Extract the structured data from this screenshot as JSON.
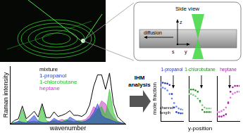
{
  "side_view": {
    "title": "Side view",
    "z_label": "z",
    "y_label": "y",
    "s_label": "s",
    "arrow_label": "diffusion"
  },
  "ihm_arrow": {
    "lines": [
      "IHM",
      "analysis"
    ]
  },
  "profile_axes": {
    "xlabel": "y-position",
    "ylabel": "mole fraction",
    "annotation": "channel length"
  },
  "chart_data": [
    {
      "type": "line",
      "xlabel": "wavenumber",
      "ylabel": "Raman intensity",
      "tick_labels": false,
      "grid": false,
      "x": [
        0,
        1,
        2,
        3,
        4,
        5,
        6,
        7,
        8,
        9,
        10,
        11,
        12,
        13,
        14,
        15,
        16,
        17,
        18,
        19,
        20,
        21,
        22,
        23,
        24,
        25,
        26,
        27,
        28,
        29
      ],
      "xlim": [
        0,
        29
      ],
      "ylim": [
        0,
        1
      ],
      "series": [
        {
          "name": "mixture",
          "color": "#000000",
          "type": "line",
          "values": [
            0,
            0.06,
            0.09,
            0.31,
            0.09,
            0.15,
            0.22,
            0.12,
            0.35,
            0.11,
            0.11,
            0.21,
            0.13,
            0.15,
            0.18,
            0.23,
            0.15,
            0.15,
            0.13,
            0.18,
            0.33,
            0.65,
            0.85,
            0.85,
            0.6,
            0.88,
            0.35,
            0.13,
            0.06,
            0
          ]
        },
        {
          "name": "1-propanol",
          "color": "#1f3fd0",
          "type": "area",
          "values": [
            0,
            0.02,
            0.05,
            0.03,
            0.02,
            0.08,
            0.15,
            0.05,
            0.03,
            0.02,
            0.04,
            0.1,
            0.06,
            0.03,
            0.05,
            0.12,
            0.08,
            0.04,
            0.03,
            0.05,
            0.1,
            0.2,
            0.35,
            0.15,
            0.1,
            0.08,
            0.05,
            0.03,
            0.02,
            0
          ]
        },
        {
          "name": "1-chlorobutane",
          "color": "#22c022",
          "type": "area",
          "values": [
            0,
            0.03,
            0.02,
            0.25,
            0.05,
            0.03,
            0.02,
            0.04,
            0.3,
            0.06,
            0.03,
            0.05,
            0.02,
            0.04,
            0.08,
            0.05,
            0.03,
            0.06,
            0.04,
            0.05,
            0.08,
            0.15,
            0.25,
            0.3,
            0.15,
            0.6,
            0.2,
            0.05,
            0.02,
            0
          ]
        },
        {
          "name": "heptane",
          "color": "#c040c0",
          "type": "area",
          "values": [
            0,
            0.01,
            0.02,
            0.03,
            0.02,
            0.04,
            0.05,
            0.03,
            0.02,
            0.03,
            0.04,
            0.06,
            0.05,
            0.08,
            0.05,
            0.06,
            0.04,
            0.05,
            0.06,
            0.08,
            0.15,
            0.3,
            0.25,
            0.4,
            0.35,
            0.2,
            0.1,
            0.05,
            0.02,
            0
          ]
        }
      ]
    },
    {
      "type": "scatter",
      "title": "1-propanol",
      "tick_labels": false,
      "grid": false,
      "x": [
        0,
        1,
        2,
        3,
        4,
        5,
        6,
        7,
        8,
        9,
        10
      ],
      "xlim": [
        0,
        10
      ],
      "ylim": [
        0,
        1
      ],
      "series": [
        {
          "color": "#2030c0",
          "values": [
            0.85,
            0.85,
            0.84,
            0.83,
            0.8,
            0.6,
            0.3,
            0.2,
            0.18,
            0.17,
            0.17
          ]
        },
        {
          "color": "#6a8ae8",
          "values": [
            0.75,
            0.74,
            0.72,
            0.68,
            0.6,
            0.5,
            0.4,
            0.32,
            0.28,
            0.26,
            0.25
          ]
        }
      ]
    },
    {
      "type": "scatter",
      "title": "1-chlorobutane",
      "tick_labels": false,
      "grid": false,
      "x": [
        0,
        1,
        2,
        3,
        4,
        5,
        6,
        7,
        8,
        9,
        10
      ],
      "xlim": [
        0,
        10
      ],
      "ylim": [
        0,
        1
      ],
      "series": [
        {
          "color": "#209020",
          "values": [
            0.7,
            0.7,
            0.7,
            0.68,
            0.65,
            0.45,
            0.25,
            0.2,
            0.2,
            0.2,
            0.2
          ]
        },
        {
          "color": "#70d070",
          "values": [
            0.6,
            0.6,
            0.58,
            0.55,
            0.5,
            0.42,
            0.35,
            0.3,
            0.28,
            0.28,
            0.28
          ]
        }
      ]
    },
    {
      "type": "scatter",
      "title": "heptane",
      "tick_labels": false,
      "grid": false,
      "x": [
        0,
        1,
        2,
        3,
        4,
        5,
        6,
        7,
        8,
        9,
        10
      ],
      "xlim": [
        0,
        10
      ],
      "ylim": [
        0,
        1
      ],
      "series": [
        {
          "color": "#a020a0",
          "values": [
            0.1,
            0.1,
            0.1,
            0.12,
            0.15,
            0.4,
            0.65,
            0.75,
            0.78,
            0.78,
            0.78
          ]
        },
        {
          "color": "#e070e0",
          "values": [
            0.2,
            0.2,
            0.22,
            0.25,
            0.3,
            0.42,
            0.52,
            0.6,
            0.63,
            0.65,
            0.65
          ]
        }
      ]
    }
  ]
}
